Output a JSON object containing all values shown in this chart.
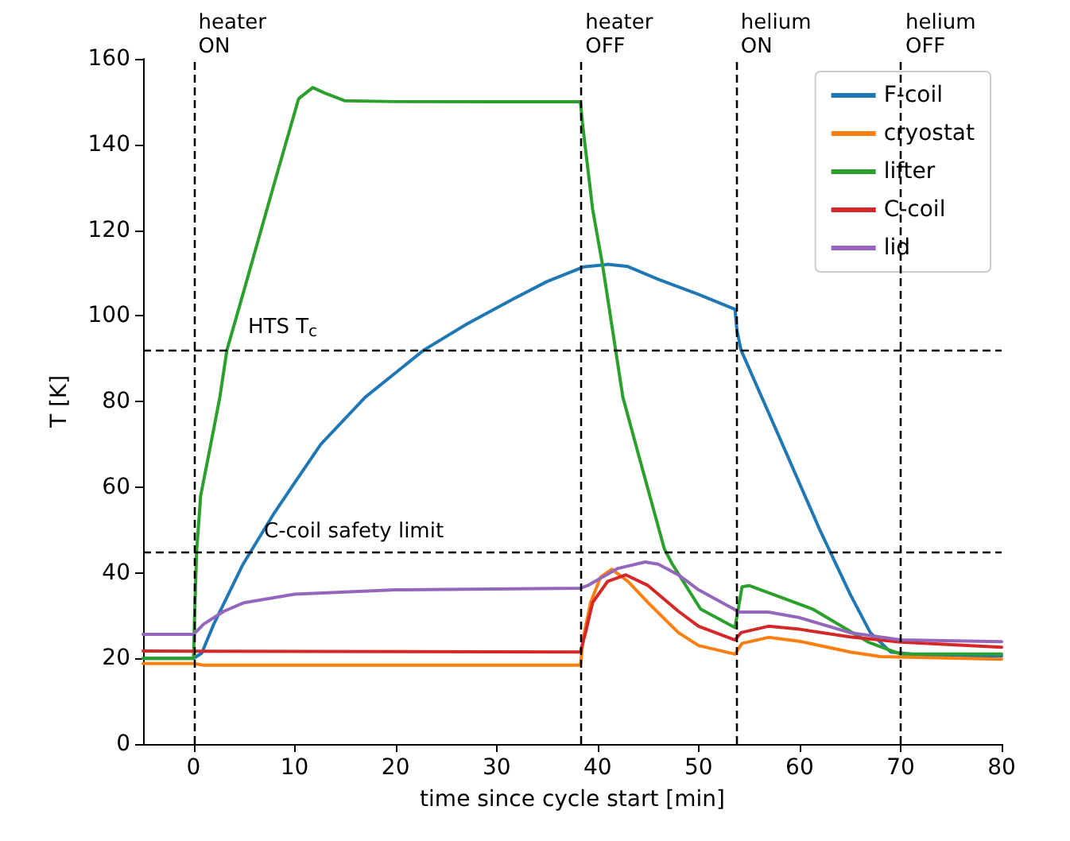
{
  "chart_data": {
    "type": "line",
    "xlabel": "time since cycle start [min]",
    "ylabel": "T [K]",
    "xlim": [
      -5,
      80
    ],
    "xticks": [
      0,
      10,
      20,
      30,
      40,
      50,
      60,
      70,
      80
    ],
    "ylim": [
      0,
      160
    ],
    "yticks": [
      0,
      20,
      40,
      60,
      80,
      100,
      120,
      140,
      160
    ],
    "grid": false,
    "legend": "top right",
    "marker": "none",
    "line_style": "solid",
    "ref_lines": [
      {
        "axis": "x",
        "value": 0,
        "label": "heater\nON",
        "color": "#000000",
        "line_style": "dashed"
      },
      {
        "axis": "x",
        "value": 38.3,
        "label": "heater\nOFF",
        "color": "#000000",
        "line_style": "dashed"
      },
      {
        "axis": "x",
        "value": 53.7,
        "label": "helium\nON",
        "color": "#000000",
        "line_style": "dashed"
      },
      {
        "axis": "x",
        "value": 70,
        "label": "helium\nOFF",
        "color": "#000000",
        "line_style": "dashed"
      },
      {
        "axis": "y",
        "value": 92,
        "label": "HTS T$_{c}$",
        "color": "#000000",
        "line_style": "dashed"
      },
      {
        "axis": "y",
        "value": 45,
        "label": "C-coil safety limit",
        "color": "#000000",
        "line_style": "dashed"
      }
    ],
    "series": [
      {
        "name": "F-coil",
        "color": "#1f77b4",
        "x": [
          -5,
          0,
          0.8,
          2,
          4.9,
          8,
          10,
          12.6,
          17,
          22.8,
          27,
          31.7,
          35,
          38.6,
          41,
          43,
          46,
          50,
          53.6,
          53.8,
          54.2,
          58.3,
          62,
          65,
          67,
          69,
          72,
          80
        ],
        "values": [
          20,
          20,
          21.2,
          28,
          42,
          54,
          61,
          70,
          81,
          92,
          98,
          104,
          108,
          111.4,
          112,
          111.5,
          108.5,
          105,
          101.5,
          96.5,
          92,
          70,
          50,
          35,
          26,
          21.5,
          20.8,
          20.5
        ]
      },
      {
        "name": "cryostat",
        "color": "#ff7f0e",
        "x": [
          -5,
          0,
          1,
          38.3,
          38.6,
          39.3,
          40.3,
          41.4,
          43,
          45,
          48,
          50,
          53.6,
          54.3,
          56.9,
          60,
          65,
          68,
          80
        ],
        "values": [
          18.8,
          18.8,
          18.4,
          18.4,
          25,
          33,
          39,
          40.8,
          38,
          33,
          26,
          23,
          21,
          23.5,
          24.9,
          24,
          21.5,
          20.4,
          19.8
        ]
      },
      {
        "name": "lifter",
        "color": "#2ca02c",
        "x": [
          -5,
          0,
          0.1,
          0.3,
          0.7,
          1.7,
          2.6,
          3.3,
          5,
          8,
          10.4,
          11.8,
          13,
          15,
          20,
          30,
          38.3,
          38.5,
          39.5,
          40.5,
          42.5,
          44,
          46.6,
          47.4,
          50.2,
          53.6,
          54.3,
          55,
          61.3,
          66.8,
          70,
          80
        ],
        "values": [
          20,
          20,
          30,
          45,
          58,
          70,
          81,
          92,
          106,
          131,
          150.7,
          153.3,
          152,
          150.2,
          150,
          150,
          150,
          145,
          125,
          111.7,
          81,
          68,
          45.6,
          42,
          31.5,
          27.2,
          36.7,
          37,
          31.5,
          23.8,
          21,
          21
        ]
      },
      {
        "name": "C-coil",
        "color": "#d62728",
        "x": [
          -5,
          38.3,
          38.8,
          39.5,
          41,
          42.8,
          45,
          48,
          50,
          53.6,
          54.2,
          56.9,
          60,
          65,
          70,
          80
        ],
        "values": [
          21.7,
          21.5,
          26,
          33,
          38,
          39.5,
          37,
          31,
          27.5,
          24.3,
          26,
          27.5,
          26.8,
          25,
          23.8,
          22.6
        ]
      },
      {
        "name": "lid",
        "color": "#9467bd",
        "x": [
          -5,
          0,
          1,
          3,
          5,
          10,
          20,
          38.3,
          39,
          42,
          44.7,
          46,
          48,
          50,
          53.5,
          54,
          56.9,
          60,
          65,
          70,
          80
        ],
        "values": [
          25.6,
          25.6,
          28,
          31,
          33,
          35,
          36,
          36.4,
          37,
          41,
          42.5,
          42,
          39.5,
          36,
          31.5,
          30.8,
          30.8,
          29.5,
          26,
          24.3,
          23.9
        ]
      }
    ]
  }
}
